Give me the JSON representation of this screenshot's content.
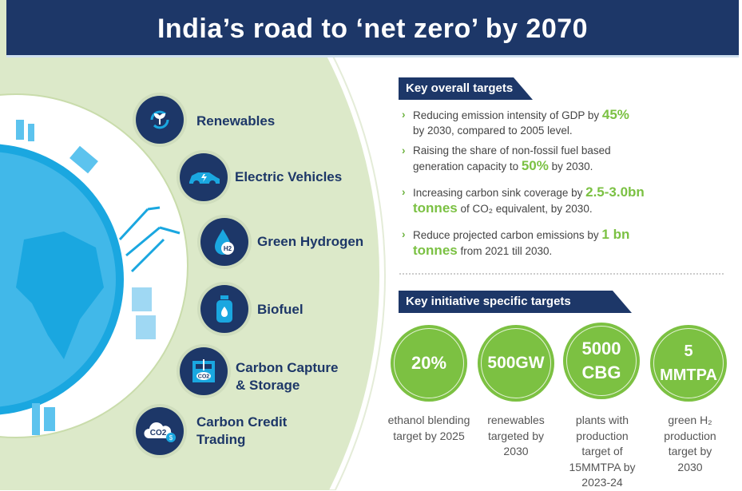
{
  "title": "India’s road to ‘net zero’ by 2070",
  "colors": {
    "navy": "#1d3768",
    "green": "#7cc142",
    "globe_blue": "#1aa7e0",
    "panel_green": "#dce9c9"
  },
  "initiatives": [
    {
      "label": "Renewables",
      "icon": "renewable-plant-icon"
    },
    {
      "label": "Electric Vehicles",
      "icon": "electric-car-icon"
    },
    {
      "label": "Green Hydrogen",
      "icon": "hydrogen-drop-icon",
      "icon_text": "H2"
    },
    {
      "label": "Biofuel",
      "icon": "gas-cylinder-flame-icon"
    },
    {
      "label": "Carbon Capture & Storage",
      "label_lines": [
        "Carbon Capture",
        "& Storage"
      ],
      "icon": "co2-storage-icon",
      "icon_text": "CO2"
    },
    {
      "label": "Carbon Credit Trading",
      "label_lines": [
        "Carbon Credit",
        "Trading"
      ],
      "icon": "co2-cloud-dollar-icon",
      "icon_text": "CO2"
    }
  ],
  "overall": {
    "heading": "Key overall targets",
    "items": [
      {
        "pre": "Reducing emission intensity of GDP by ",
        "hl": "45%",
        "post": " by 2030, compared to 2005 level."
      },
      {
        "pre": "Raising the share of non-fossil fuel based generation capacity to ",
        "hl": "50%",
        "post": " by 2030."
      },
      {
        "pre": "Increasing carbon sink coverage by ",
        "hl": "2.5-3.0bn tonnes",
        "post": " of CO₂ equivalent, by 2030."
      },
      {
        "pre": "Reduce projected carbon emissions by ",
        "hl": "1 bn tonnes",
        "post": " from 2021 till 2030."
      }
    ]
  },
  "specific": {
    "heading": "Key initiative specific targets",
    "items": [
      {
        "value": "20%",
        "label": "ethanol blending target by 2025"
      },
      {
        "value": "500GW",
        "label": "renewables targeted by 2030"
      },
      {
        "value": "5000 CBG",
        "label": "plants with production target of 15MMTPA by 2023-24"
      },
      {
        "value": "5 MMTPA",
        "label": "green H₂ production target by 2030"
      }
    ]
  }
}
